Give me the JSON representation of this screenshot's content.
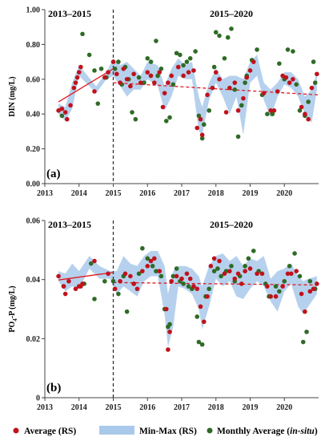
{
  "colors": {
    "rs_point": "#c0121b",
    "band": "#a9c9ea",
    "insitu_point": "#2f6b26",
    "trend": "#e0191f",
    "divider": "#333333"
  },
  "legend": {
    "rs_label": "Average (RS)",
    "band_label": "Min-Max (RS)",
    "insitu_label_prefix": "Monthly Average (",
    "insitu_label_italic": "in-situ",
    "insitu_label_suffix": ")"
  },
  "chart_data": [
    {
      "type": "scatter",
      "panel_label": "(a)",
      "period_left": "2013–2015",
      "period_right": "2015–2020",
      "ylabel": "DIN (mg/L)",
      "xlim": [
        2013,
        2021
      ],
      "ylim": [
        0,
        1.0
      ],
      "xticks": [
        2013,
        2014,
        2015,
        2016,
        2017,
        2018,
        2019,
        2020
      ],
      "yticks": [
        "0.00",
        "0.20",
        "0.40",
        "0.60",
        "0.80",
        "1.00"
      ],
      "divider_x": 2015,
      "series": [
        {
          "name": "Average (RS)",
          "x": [
            2013.4,
            2013.5,
            2013.6,
            2013.65,
            2013.75,
            2013.85,
            2013.9,
            2013.95,
            2014.0,
            2014.05,
            2014.45,
            2014.75,
            2014.85,
            2015.0,
            2015.1,
            2015.2,
            2015.3,
            2015.4,
            2015.5,
            2015.6,
            2015.8,
            2016.0,
            2016.1,
            2016.2,
            2016.35,
            2016.45,
            2016.5,
            2016.6,
            2016.7,
            2016.9,
            2017.05,
            2017.2,
            2017.35,
            2017.45,
            2017.55,
            2017.6,
            2017.75,
            2017.9,
            2018.0,
            2018.1,
            2018.3,
            2018.4,
            2018.55,
            2018.65,
            2018.8,
            2018.9,
            2019.0,
            2019.1,
            2019.4,
            2019.6,
            2019.7,
            2019.8,
            2019.95,
            2020.05,
            2020.15,
            2020.25,
            2020.5,
            2020.6,
            2020.7,
            2020.8,
            2020.95
          ],
          "y": [
            0.42,
            0.43,
            0.41,
            0.37,
            0.45,
            0.55,
            0.58,
            0.61,
            0.64,
            0.67,
            0.53,
            0.61,
            0.64,
            0.7,
            0.63,
            0.58,
            0.66,
            0.6,
            0.56,
            0.63,
            0.58,
            0.64,
            0.62,
            0.58,
            0.64,
            0.44,
            0.52,
            0.58,
            0.62,
            0.67,
            0.62,
            0.64,
            0.65,
            0.32,
            0.37,
            0.28,
            0.51,
            0.55,
            0.64,
            0.6,
            0.41,
            0.55,
            0.58,
            0.42,
            0.49,
            0.61,
            0.65,
            0.7,
            0.52,
            0.42,
            0.42,
            0.53,
            0.62,
            0.61,
            0.58,
            0.6,
            0.44,
            0.4,
            0.37,
            0.55,
            0.63
          ]
        },
        {
          "name": "Min-Max (RS)",
          "x": [
            2013.4,
            2013.6,
            2013.8,
            2014.0,
            2014.5,
            2014.8,
            2015.0,
            2015.2,
            2015.4,
            2015.6,
            2015.8,
            2016.0,
            2016.3,
            2016.5,
            2016.7,
            2016.9,
            2017.1,
            2017.3,
            2017.5,
            2017.6,
            2017.8,
            2018.0,
            2018.2,
            2018.4,
            2018.6,
            2018.8,
            2019.0,
            2019.2,
            2019.4,
            2019.6,
            2019.8,
            2020.0,
            2020.2,
            2020.4,
            2020.6,
            2020.8,
            2020.95
          ],
          "min": [
            0.4,
            0.36,
            0.43,
            0.62,
            0.52,
            0.6,
            0.62,
            0.56,
            0.5,
            0.54,
            0.54,
            0.6,
            0.56,
            0.42,
            0.5,
            0.62,
            0.6,
            0.6,
            0.3,
            0.28,
            0.48,
            0.58,
            0.5,
            0.4,
            0.5,
            0.28,
            0.58,
            0.62,
            0.48,
            0.38,
            0.5,
            0.57,
            0.55,
            0.5,
            0.4,
            0.35,
            0.54
          ],
          "max": [
            0.46,
            0.44,
            0.58,
            0.68,
            0.56,
            0.64,
            0.72,
            0.68,
            0.7,
            0.66,
            0.62,
            0.7,
            0.68,
            0.56,
            0.66,
            0.72,
            0.68,
            0.7,
            0.5,
            0.44,
            0.58,
            0.66,
            0.6,
            0.62,
            0.62,
            0.6,
            0.7,
            0.74,
            0.58,
            0.54,
            0.58,
            0.64,
            0.64,
            0.6,
            0.5,
            0.54,
            0.64
          ]
        },
        {
          "name": "Monthly Average (in-situ)",
          "x": [
            2013.5,
            2014.1,
            2014.3,
            2014.45,
            2014.55,
            2014.65,
            2014.8,
            2015.05,
            2015.15,
            2015.25,
            2015.35,
            2015.45,
            2015.55,
            2015.65,
            2015.75,
            2015.9,
            2016.0,
            2016.1,
            2016.25,
            2016.3,
            2016.4,
            2016.55,
            2016.65,
            2016.75,
            2016.85,
            2016.95,
            2017.05,
            2017.15,
            2017.25,
            2017.4,
            2017.5,
            2017.6,
            2017.65,
            2017.8,
            2017.95,
            2018.0,
            2018.1,
            2018.25,
            2018.35,
            2018.45,
            2018.55,
            2018.65,
            2018.75,
            2018.85,
            2018.9,
            2019.05,
            2019.2,
            2019.35,
            2019.5,
            2019.65,
            2019.85,
            2020.0,
            2020.1,
            2020.25,
            2020.35,
            2020.45,
            2020.6,
            2020.7,
            2020.85,
            2020.9
          ],
          "y": [
            0.39,
            0.86,
            0.74,
            0.65,
            0.46,
            0.66,
            0.61,
            0.66,
            0.7,
            0.57,
            0.67,
            0.6,
            0.41,
            0.37,
            0.61,
            0.58,
            0.72,
            0.7,
            0.82,
            0.62,
            0.66,
            0.36,
            0.38,
            0.57,
            0.75,
            0.74,
            0.68,
            0.7,
            0.72,
            0.76,
            0.39,
            0.26,
            0.34,
            0.42,
            0.67,
            0.87,
            0.85,
            0.72,
            0.84,
            0.89,
            0.54,
            0.27,
            0.45,
            0.58,
            0.62,
            0.71,
            0.77,
            0.51,
            0.4,
            0.4,
            0.69,
            0.6,
            0.77,
            0.76,
            0.57,
            0.42,
            0.39,
            0.47,
            0.7,
            0.58
          ]
        }
      ],
      "trend_lines": [
        {
          "x": [
            2013.4,
            2015.0
          ],
          "y": [
            0.47,
            0.66
          ],
          "style": "solid"
        },
        {
          "x": [
            2015.0,
            2021.0
          ],
          "y": [
            0.58,
            0.51
          ],
          "style": "dashed"
        }
      ]
    },
    {
      "type": "scatter",
      "panel_label": "(b)",
      "period_left": "2013–2015",
      "period_right": "2015–2020",
      "ylabel_main": "PO",
      "ylabel_sub": "4",
      "ylabel_rest": "-P (mg/L)",
      "xlim": [
        2013,
        2021
      ],
      "ylim": [
        0,
        0.07
      ],
      "xticks": [
        2013,
        2014,
        2015,
        2016,
        2017,
        2018,
        2019,
        2020
      ],
      "yticks": [
        "0",
        "0.02",
        "0.04",
        "0.06"
      ],
      "divider_x": 2015,
      "series": [
        {
          "name": "Average (RS)",
          "x": [
            2013.4,
            2013.55,
            2013.6,
            2013.7,
            2013.9,
            2014.0,
            2014.05,
            2014.1,
            2014.45,
            2014.85,
            2015.05,
            2015.2,
            2015.35,
            2015.5,
            2015.6,
            2015.7,
            2015.85,
            2016.0,
            2016.1,
            2016.2,
            2016.35,
            2016.55,
            2016.6,
            2016.65,
            2016.7,
            2016.85,
            2017.0,
            2017.15,
            2017.25,
            2017.35,
            2017.45,
            2017.55,
            2017.65,
            2017.75,
            2017.85,
            2017.95,
            2018.1,
            2018.25,
            2018.4,
            2018.55,
            2018.65,
            2018.75,
            2018.85,
            2019.0,
            2019.2,
            2019.35,
            2019.5,
            2019.6,
            2019.75,
            2019.95,
            2020.1,
            2020.2,
            2020.35,
            2020.5,
            2020.6,
            2020.75,
            2020.85,
            2020.95
          ],
          "y": [
            0.048,
            0.044,
            0.041,
            0.046,
            0.043,
            0.044,
            0.044,
            0.045,
            0.054,
            0.049,
            0.043,
            0.046,
            0.049,
            0.048,
            0.045,
            0.043,
            0.05,
            0.052,
            0.054,
            0.055,
            0.05,
            0.035,
            0.019,
            0.026,
            0.046,
            0.048,
            0.047,
            0.049,
            0.047,
            0.044,
            0.043,
            0.036,
            0.03,
            0.04,
            0.052,
            0.055,
            0.054,
            0.049,
            0.05,
            0.047,
            0.049,
            0.045,
            0.05,
            0.051,
            0.049,
            0.049,
            0.044,
            0.04,
            0.04,
            0.044,
            0.049,
            0.049,
            0.05,
            0.041,
            0.034,
            0.042,
            0.043,
            0.045
          ]
        },
        {
          "name": "Min-Max (RS)",
          "x": [
            2013.4,
            2013.6,
            2013.8,
            2014.0,
            2014.3,
            2014.6,
            2014.9,
            2015.1,
            2015.3,
            2015.5,
            2015.7,
            2015.9,
            2016.1,
            2016.3,
            2016.5,
            2016.6,
            2016.75,
            2016.9,
            2017.1,
            2017.3,
            2017.5,
            2017.6,
            2017.8,
            2018.0,
            2018.2,
            2018.4,
            2018.6,
            2018.8,
            2019.0,
            2019.2,
            2019.4,
            2019.6,
            2019.8,
            2020.0,
            2020.2,
            2020.4,
            2020.55,
            2020.7,
            2020.95
          ],
          "min": [
            0.046,
            0.042,
            0.044,
            0.043,
            0.051,
            0.047,
            0.047,
            0.041,
            0.044,
            0.042,
            0.04,
            0.046,
            0.048,
            0.048,
            0.033,
            0.02,
            0.028,
            0.044,
            0.043,
            0.041,
            0.035,
            0.027,
            0.036,
            0.047,
            0.044,
            0.046,
            0.04,
            0.039,
            0.043,
            0.046,
            0.044,
            0.038,
            0.034,
            0.042,
            0.045,
            0.036,
            0.033,
            0.036,
            0.041
          ],
          "max": [
            0.05,
            0.049,
            0.053,
            0.05,
            0.056,
            0.052,
            0.05,
            0.05,
            0.056,
            0.053,
            0.052,
            0.056,
            0.058,
            0.058,
            0.052,
            0.041,
            0.05,
            0.052,
            0.052,
            0.051,
            0.048,
            0.044,
            0.052,
            0.056,
            0.057,
            0.054,
            0.056,
            0.052,
            0.055,
            0.054,
            0.056,
            0.047,
            0.05,
            0.051,
            0.053,
            0.048,
            0.046,
            0.047,
            0.048
          ]
        },
        {
          "name": "Monthly Average (in-situ)",
          "x": [
            2013.55,
            2014.15,
            2014.35,
            2014.45,
            2014.75,
            2015.0,
            2015.15,
            2015.3,
            2015.4,
            2015.6,
            2015.75,
            2015.85,
            2016.0,
            2016.15,
            2016.25,
            2016.4,
            2016.5,
            2016.6,
            2016.65,
            2016.75,
            2016.85,
            2016.95,
            2017.05,
            2017.2,
            2017.3,
            2017.45,
            2017.5,
            2017.6,
            2017.7,
            2017.8,
            2017.95,
            2018.05,
            2018.15,
            2018.3,
            2018.45,
            2018.55,
            2018.7,
            2018.85,
            2018.95,
            2019.1,
            2019.25,
            2019.45,
            2019.55,
            2019.75,
            2019.85,
            2020.0,
            2020.15,
            2020.3,
            2020.45,
            2020.55,
            2020.65,
            2020.75,
            2020.9
          ],
          "y": [
            0.044,
            0.045,
            0.053,
            0.039,
            0.046,
            0.046,
            0.041,
            0.048,
            0.034,
            0.045,
            0.049,
            0.059,
            0.055,
            0.052,
            0.05,
            0.048,
            0.035,
            0.028,
            0.029,
            0.048,
            0.051,
            0.046,
            0.045,
            0.044,
            0.043,
            0.032,
            0.022,
            0.021,
            0.04,
            0.043,
            0.05,
            0.051,
            0.048,
            0.05,
            0.052,
            0.046,
            0.048,
            0.052,
            0.055,
            0.058,
            0.05,
            0.045,
            0.04,
            0.044,
            0.042,
            0.046,
            0.052,
            0.057,
            0.048,
            0.022,
            0.026,
            0.046,
            0.043
          ]
        }
      ],
      "trend_lines": [
        {
          "x": [
            2013.4,
            2015.0
          ],
          "y": [
            0.0465,
            0.0495
          ],
          "style": "solid"
        },
        {
          "x": [
            2015.0,
            2021.0
          ],
          "y": [
            0.0455,
            0.0445
          ],
          "style": "dashed"
        }
      ]
    }
  ]
}
